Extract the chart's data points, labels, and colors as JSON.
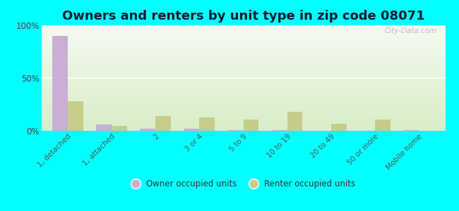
{
  "title": "Owners and renters by unit type in zip code 08071",
  "categories": [
    "1, detached",
    "1, attached",
    "2",
    "3 or 4",
    "5 to 9",
    "10 to 19",
    "20 to 49",
    "50 or more",
    "Mobile home"
  ],
  "owner_values": [
    90,
    6,
    2,
    2,
    1,
    1,
    0,
    0,
    1
  ],
  "renter_values": [
    28,
    5,
    14,
    13,
    11,
    18,
    7,
    11,
    0
  ],
  "owner_color": "#c9afd4",
  "renter_color": "#c8cc8a",
  "ylim": [
    0,
    100
  ],
  "yticks": [
    0,
    50,
    100
  ],
  "ytick_labels": [
    "0%",
    "50%",
    "100%"
  ],
  "bar_width": 0.35,
  "legend_owner": "Owner occupied units",
  "legend_renter": "Renter occupied units",
  "title_fontsize": 13,
  "watermark": "City-Data.com",
  "background_color": "#00ffff",
  "title_color": "#1a1a2e"
}
